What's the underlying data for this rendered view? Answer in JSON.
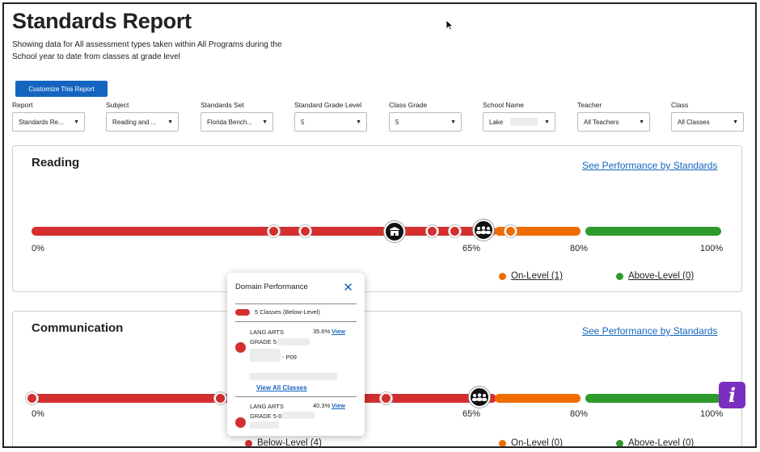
{
  "page": {
    "title": "Standards Report",
    "subtitle": "Showing data for All assessment types taken within All Programs during the School year to date from classes at grade level",
    "customize_label": "Customize This Report"
  },
  "filters": [
    {
      "label": "Report",
      "value": "Standards Re..."
    },
    {
      "label": "Subject",
      "value": "Reading and ..."
    },
    {
      "label": "Standards Set",
      "value": "Florida Bench..."
    },
    {
      "label": "Standard Grade Level",
      "value": "5"
    },
    {
      "label": "Class Grade",
      "value": "5"
    },
    {
      "label": "School Name",
      "value": "Lake"
    },
    {
      "label": "Teacher",
      "value": "All Teachers"
    },
    {
      "label": "Class",
      "value": "All Classes"
    }
  ],
  "reading": {
    "title": "Reading",
    "link": "See Performance by Standards",
    "ticks": [
      "0%",
      "65%",
      "80%",
      "100%"
    ],
    "legend": {
      "on_level": "On-Level (1)",
      "above_level": "Above-Level (0)"
    }
  },
  "communication": {
    "title": "Communication",
    "link": "See Performance by Standards",
    "ticks": [
      "0%",
      "65%",
      "80%",
      "100%"
    ],
    "legend": {
      "below_level": "Below-Level (4)",
      "on_level": "On-Level (0)",
      "above_level": "Above-Level (0)"
    }
  },
  "popup": {
    "title": "Domain Performance",
    "summary": "5 Classes (Below-Level)",
    "classes": [
      {
        "name": "LANG ARTS GRADE 5",
        "pct": "35.6%",
        "view": "View",
        "code": "- P09"
      },
      {
        "name": "LANG ARTS GRADE 5-0",
        "pct": "40.3%",
        "view": "View"
      }
    ],
    "view_all": "View All Classes"
  },
  "icons": {
    "close": "close-icon",
    "info": "info-icon",
    "school": "school-icon",
    "group": "group-icon"
  },
  "colors": {
    "below": "#d32f2f",
    "on": "#ef6c00",
    "above": "#2e9a2e",
    "link": "#1565c0",
    "info": "#7b2fbf"
  }
}
